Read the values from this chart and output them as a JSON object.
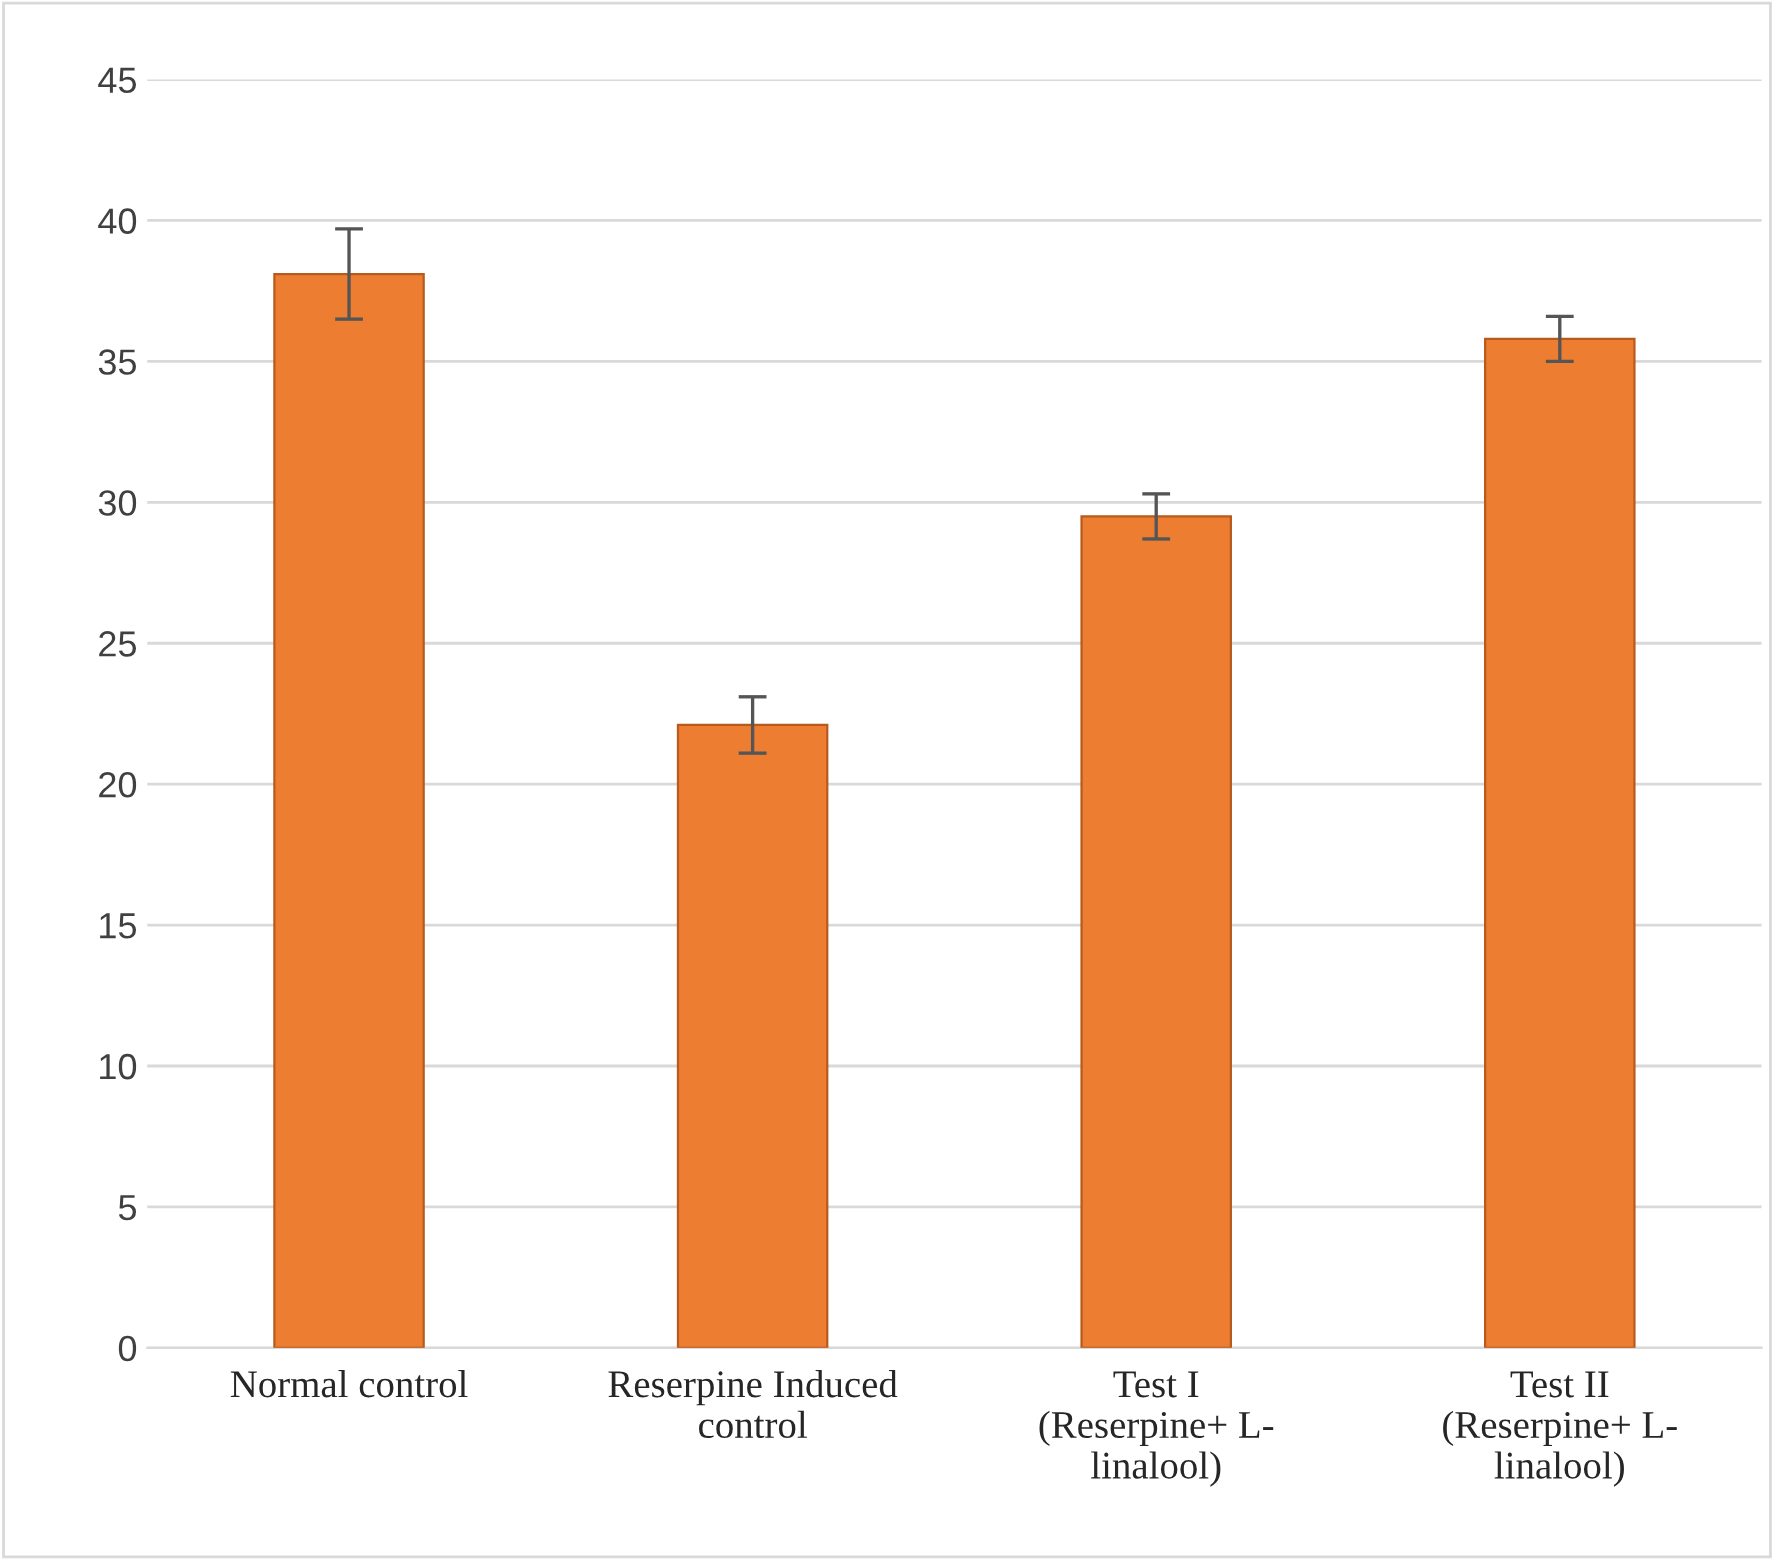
{
  "chart_data": {
    "type": "bar",
    "categories": [
      "Normal control",
      "Reserpine Induced\ncontrol",
      "Test I\n(Reserpine+ L-\nlinalool)",
      "Test II\n(Reserpine+ L-\nlinalool)"
    ],
    "values": [
      38.1,
      22.1,
      29.5,
      35.8
    ],
    "errors": [
      1.6,
      1.0,
      0.8,
      0.8
    ],
    "color": "#ed7d31",
    "ylim": [
      0,
      45
    ],
    "yticks": [
      0,
      5,
      10,
      15,
      20,
      25,
      30,
      35,
      40,
      45
    ],
    "grid": "y"
  }
}
